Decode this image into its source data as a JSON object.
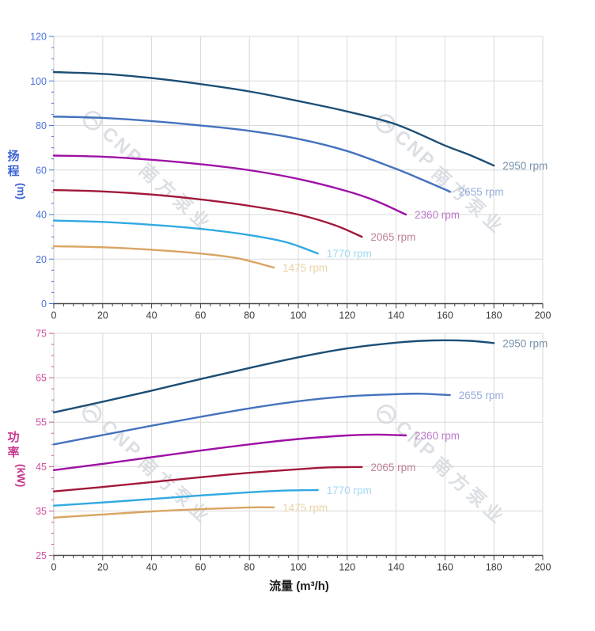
{
  "watermark": {
    "brand_en": "CNP",
    "brand_zh": "南方泵业",
    "color": "#c9ced6"
  },
  "chart_data": [
    {
      "type": "line",
      "id": "head-curve",
      "ylabel_zh": "扬程",
      "ylabel_unit": "(m)",
      "accent": "#4a72dc",
      "title_accent": "#3d63d4",
      "x_range": [
        0,
        200
      ],
      "y_range": [
        0,
        120
      ],
      "x_major": 20,
      "x_minor": 4,
      "y_major": 20,
      "y_minor": 5,
      "x_ticks": [
        0,
        20,
        40,
        60,
        80,
        100,
        120,
        140,
        160,
        180,
        200
      ],
      "y_ticks": [
        0,
        20,
        40,
        60,
        80,
        100,
        120
      ],
      "grid": true,
      "legend_position": "end-of-line-labels",
      "series": [
        {
          "name": "2950 rpm",
          "color": "#1c4e75",
          "label_color": "#7790a9",
          "points": [
            [
              0,
              104
            ],
            [
              20,
              103.2
            ],
            [
              40,
              101.3
            ],
            [
              60,
              98.6
            ],
            [
              80,
              95.3
            ],
            [
              100,
              91
            ],
            [
              120,
              86.3
            ],
            [
              140,
              80.5
            ],
            [
              160,
              71
            ],
            [
              170,
              66.8
            ],
            [
              180,
              62
            ]
          ]
        },
        {
          "name": "2655 rpm",
          "color": "#4472bd",
          "label_color": "#98abdc",
          "points": [
            [
              0,
              84
            ],
            [
              20,
              83.4
            ],
            [
              40,
              82
            ],
            [
              60,
              80
            ],
            [
              80,
              77.6
            ],
            [
              100,
              74
            ],
            [
              120,
              68.5
            ],
            [
              140,
              60.5
            ],
            [
              150,
              56
            ],
            [
              162,
              50.3
            ]
          ]
        },
        {
          "name": "2360 rpm",
          "color": "#9e10a6",
          "label_color": "#bc7acb",
          "points": [
            [
              0,
              66.5
            ],
            [
              20,
              66
            ],
            [
              40,
              64.6
            ],
            [
              60,
              62.6
            ],
            [
              80,
              59.9
            ],
            [
              100,
              56
            ],
            [
              120,
              50.5
            ],
            [
              132,
              46
            ],
            [
              144,
              40
            ]
          ]
        },
        {
          "name": "2065 rpm",
          "color": "#a21838",
          "label_color": "#bf8195",
          "points": [
            [
              0,
              51
            ],
            [
              20,
              50.4
            ],
            [
              40,
              49
            ],
            [
              60,
              46.8
            ],
            [
              80,
              43.9
            ],
            [
              100,
              40
            ],
            [
              115,
              35.2
            ],
            [
              126,
              30
            ]
          ]
        },
        {
          "name": "1770 rpm",
          "color": "#31a9e2",
          "label_color": "#a3d9f3",
          "points": [
            [
              0,
              37.3
            ],
            [
              20,
              36.7
            ],
            [
              40,
              35.4
            ],
            [
              60,
              33.6
            ],
            [
              80,
              30.8
            ],
            [
              95,
              27.6
            ],
            [
              108,
              22.5
            ]
          ]
        },
        {
          "name": "1475 rpm",
          "color": "#d9a463",
          "label_color": "#e8d2a8",
          "points": [
            [
              0,
              25.8
            ],
            [
              20,
              25.3
            ],
            [
              40,
              24.2
            ],
            [
              60,
              22.5
            ],
            [
              75,
              20.4
            ],
            [
              90,
              16.2
            ]
          ]
        }
      ]
    },
    {
      "type": "line",
      "id": "power-curve",
      "ylabel_zh": "功率",
      "ylabel_unit": "(kW)",
      "accent": "#d1509d",
      "title_accent": "#c8388f",
      "x_range": [
        0,
        200
      ],
      "y_range": [
        25,
        75
      ],
      "x_major": 20,
      "x_minor": 4,
      "y_major": 10,
      "y_minor": 2.5,
      "x_ticks": [
        0,
        20,
        40,
        60,
        80,
        100,
        120,
        140,
        160,
        180,
        200
      ],
      "y_ticks": [
        25,
        35,
        45,
        55,
        65,
        75
      ],
      "grid": true,
      "legend_position": "end-of-line-labels",
      "series": [
        {
          "name": "2950 rpm",
          "color": "#1c4e75",
          "label_color": "#7790a9",
          "points": [
            [
              0,
              57.2
            ],
            [
              20,
              59.6
            ],
            [
              40,
              62.1
            ],
            [
              60,
              64.7
            ],
            [
              80,
              67.2
            ],
            [
              100,
              69.6
            ],
            [
              120,
              71.6
            ],
            [
              140,
              72.9
            ],
            [
              155,
              73.4
            ],
            [
              170,
              73.3
            ],
            [
              180,
              72.8
            ]
          ]
        },
        {
          "name": "2655 rpm",
          "color": "#4472bd",
          "label_color": "#98abdc",
          "points": [
            [
              0,
              50
            ],
            [
              20,
              52.1
            ],
            [
              40,
              54.2
            ],
            [
              60,
              56.2
            ],
            [
              80,
              58.1
            ],
            [
              100,
              59.7
            ],
            [
              120,
              60.8
            ],
            [
              140,
              61.3
            ],
            [
              150,
              61.4
            ],
            [
              162,
              61.1
            ]
          ]
        },
        {
          "name": "2360 rpm",
          "color": "#9e10a6",
          "label_color": "#bc7acb",
          "points": [
            [
              0,
              44.2
            ],
            [
              20,
              45.6
            ],
            [
              40,
              47.1
            ],
            [
              60,
              48.6
            ],
            [
              80,
              50
            ],
            [
              100,
              51.2
            ],
            [
              120,
              52
            ],
            [
              132,
              52.2
            ],
            [
              144,
              52
            ]
          ]
        },
        {
          "name": "2065 rpm",
          "color": "#a21838",
          "label_color": "#bf8195",
          "points": [
            [
              0,
              39.4
            ],
            [
              20,
              40.4
            ],
            [
              40,
              41.5
            ],
            [
              60,
              42.6
            ],
            [
              80,
              43.6
            ],
            [
              100,
              44.4
            ],
            [
              112,
              44.8
            ],
            [
              126,
              44.9
            ]
          ]
        },
        {
          "name": "1770 rpm",
          "color": "#31a9e2",
          "label_color": "#a3d9f3",
          "points": [
            [
              0,
              36.2
            ],
            [
              20,
              36.9
            ],
            [
              40,
              37.7
            ],
            [
              60,
              38.5
            ],
            [
              80,
              39.2
            ],
            [
              95,
              39.6
            ],
            [
              108,
              39.7
            ]
          ]
        },
        {
          "name": "1475 rpm",
          "color": "#d9a463",
          "label_color": "#e8d2a8",
          "points": [
            [
              0,
              33.5
            ],
            [
              20,
              34.2
            ],
            [
              40,
              34.9
            ],
            [
              60,
              35.4
            ],
            [
              80,
              35.8
            ],
            [
              90,
              35.8
            ]
          ]
        }
      ]
    }
  ],
  "x_axis": {
    "title": "流量 (m³/h)",
    "tick_color": "#3c3c3c",
    "title_color": "#1a1a1a"
  }
}
